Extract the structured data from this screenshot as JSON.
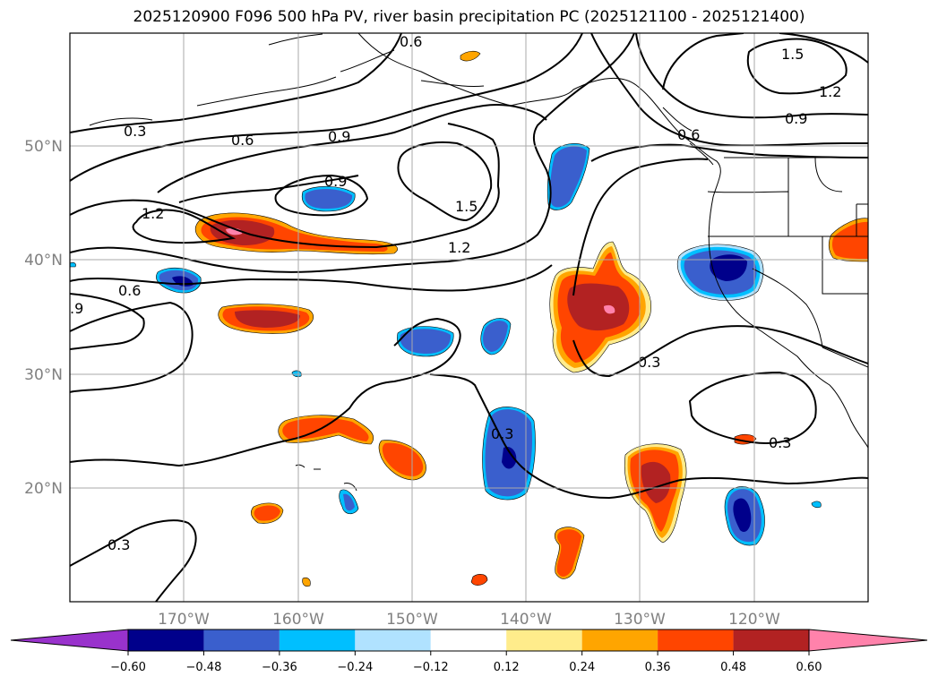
{
  "title": "2025120900 F096 500 hPa PV, river basin precipitation PC (2025121100 - 2025121400)",
  "axes": {
    "lat_ticks": [
      "50°N",
      "40°N",
      "30°N",
      "20°N"
    ],
    "lon_ticks": [
      "170°W",
      "160°W",
      "150°W",
      "140°W",
      "130°W",
      "120°W"
    ]
  },
  "contour_labels": [
    "0.6",
    "1.5",
    "1.2",
    "0.3",
    "0.9",
    "0.6",
    "0.9",
    "0.9",
    "1.5",
    "1.2",
    "0.6",
    "1.2",
    "0.6",
    ".9",
    "0.3",
    "0.3",
    "0.3",
    "0.3"
  ],
  "colorbar": {
    "ticks": [
      "−0.60",
      "−0.48",
      "−0.36",
      "−0.24",
      "−0.12",
      "0.12",
      "0.24",
      "0.36",
      "0.48",
      "0.60"
    ],
    "colors": [
      "#9932cc",
      "#00008b",
      "#3a5fcd",
      "#00bfff",
      "#b0e2ff",
      "#ffffff",
      "#ffec8b",
      "#ffa500",
      "#ff4500",
      "#b22222",
      "#ff82ab"
    ]
  },
  "chart_data": {
    "type": "map",
    "region": "North-East Pacific",
    "lat_range": [
      10,
      60
    ],
    "lon_range": [
      -180,
      -110
    ],
    "field_contoured": "500 hPa PV",
    "field_shaded": "river basin precipitation PC",
    "contour_levels": [
      0.3,
      0.6,
      0.9,
      1.2,
      1.5
    ],
    "shading_levels": [
      -0.6,
      -0.48,
      -0.36,
      -0.24,
      -0.12,
      0.12,
      0.24,
      0.36,
      0.48,
      0.6
    ]
  }
}
